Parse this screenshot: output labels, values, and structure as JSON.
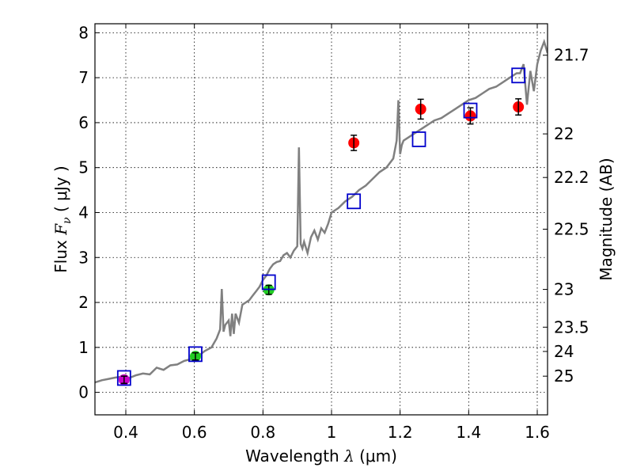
{
  "chart_data": {
    "type": "scatter",
    "xlabel_prefix": "Wavelength",
    "xlabel_symbol": "λ",
    "xlabel_unit": "(μm)",
    "ylabel_prefix": "Flux",
    "ylabel_symbol": "F",
    "ylabel_subscript": "ν",
    "ylabel_unit": "( μJy )",
    "y2label": "Magnitude (AB)",
    "xlim": [
      0.31,
      1.63
    ],
    "ylim": [
      -0.5,
      8.2
    ],
    "grid": true,
    "x_ticks": [
      {
        "value": 0.4,
        "label": "0.4"
      },
      {
        "value": 0.6,
        "label": "0.6"
      },
      {
        "value": 0.8,
        "label": "0.8"
      },
      {
        "value": 1.0,
        "label": "1"
      },
      {
        "value": 1.2,
        "label": "1.2"
      },
      {
        "value": 1.4,
        "label": "1.4"
      },
      {
        "value": 1.6,
        "label": "1.6"
      }
    ],
    "y_ticks": [
      {
        "value": 0,
        "label": "0"
      },
      {
        "value": 1,
        "label": "1"
      },
      {
        "value": 2,
        "label": "2"
      },
      {
        "value": 3,
        "label": "3"
      },
      {
        "value": 4,
        "label": "4"
      },
      {
        "value": 5,
        "label": "5"
      },
      {
        "value": 6,
        "label": "6"
      },
      {
        "value": 7,
        "label": "7"
      },
      {
        "value": 8,
        "label": "8"
      }
    ],
    "y2_ticks": [
      {
        "flux": 7.5,
        "label": "21.7"
      },
      {
        "flux": 5.75,
        "label": "22"
      },
      {
        "flux": 4.78,
        "label": "22.2"
      },
      {
        "flux": 3.63,
        "label": "22.5"
      },
      {
        "flux": 2.29,
        "label": "23"
      },
      {
        "flux": 1.45,
        "label": "23.5"
      },
      {
        "flux": 0.91,
        "label": "24"
      },
      {
        "flux": 0.36,
        "label": "25"
      }
    ],
    "model_spectrum": {
      "color": "#808080",
      "x": [
        0.31,
        0.33,
        0.35,
        0.37,
        0.39,
        0.41,
        0.43,
        0.45,
        0.47,
        0.49,
        0.51,
        0.53,
        0.55,
        0.57,
        0.59,
        0.61,
        0.63,
        0.65,
        0.665,
        0.675,
        0.68,
        0.685,
        0.69,
        0.7,
        0.705,
        0.71,
        0.715,
        0.72,
        0.73,
        0.74,
        0.75,
        0.76,
        0.77,
        0.78,
        0.79,
        0.8,
        0.81,
        0.82,
        0.83,
        0.84,
        0.85,
        0.86,
        0.87,
        0.88,
        0.89,
        0.9,
        0.905,
        0.91,
        0.915,
        0.92,
        0.93,
        0.94,
        0.95,
        0.96,
        0.97,
        0.98,
        0.99,
        1.0,
        1.02,
        1.04,
        1.06,
        1.08,
        1.1,
        1.12,
        1.14,
        1.16,
        1.18,
        1.19,
        1.195,
        1.2,
        1.205,
        1.21,
        1.22,
        1.24,
        1.26,
        1.28,
        1.3,
        1.32,
        1.34,
        1.36,
        1.38,
        1.4,
        1.42,
        1.44,
        1.46,
        1.48,
        1.5,
        1.52,
        1.54,
        1.55,
        1.56,
        1.57,
        1.58,
        1.59,
        1.6,
        1.61,
        1.62,
        1.63
      ],
      "y": [
        0.22,
        0.27,
        0.3,
        0.33,
        0.35,
        0.32,
        0.38,
        0.42,
        0.4,
        0.55,
        0.5,
        0.6,
        0.62,
        0.7,
        0.74,
        0.8,
        0.92,
        1.0,
        1.2,
        1.4,
        2.3,
        1.35,
        1.5,
        1.6,
        1.25,
        1.75,
        1.3,
        1.75,
        1.55,
        1.95,
        2.0,
        2.05,
        2.15,
        2.25,
        2.35,
        2.5,
        2.6,
        2.75,
        2.85,
        2.9,
        2.92,
        3.05,
        3.1,
        3.0,
        3.15,
        3.25,
        5.45,
        3.3,
        3.2,
        3.35,
        3.1,
        3.45,
        3.6,
        3.4,
        3.65,
        3.55,
        3.75,
        4.0,
        4.1,
        4.25,
        4.35,
        4.5,
        4.6,
        4.75,
        4.9,
        5.0,
        5.2,
        5.6,
        6.5,
        5.3,
        5.5,
        5.6,
        5.65,
        5.75,
        5.85,
        5.95,
        6.05,
        6.1,
        6.2,
        6.3,
        6.4,
        6.5,
        6.55,
        6.65,
        6.75,
        6.8,
        6.9,
        7.0,
        7.1,
        7.1,
        7.3,
        6.4,
        7.15,
        6.7,
        7.3,
        7.6,
        7.8,
        7.55
      ]
    },
    "series": [
      {
        "name": "observed-optical-u",
        "color": "#cc00cc",
        "points": [
          {
            "x": 0.395,
            "y": 0.28,
            "err": 0.08
          }
        ]
      },
      {
        "name": "observed-optical",
        "color": "#22cc22",
        "points": [
          {
            "x": 0.603,
            "y": 0.8,
            "err": 0.08
          },
          {
            "x": 0.817,
            "y": 2.28,
            "err": 0.1
          }
        ]
      },
      {
        "name": "observed-nir",
        "color": "#ff0000",
        "points": [
          {
            "x": 1.065,
            "y": 5.55,
            "err": 0.17
          },
          {
            "x": 1.26,
            "y": 6.3,
            "err": 0.22
          },
          {
            "x": 1.405,
            "y": 6.15,
            "err": 0.18
          },
          {
            "x": 1.545,
            "y": 6.35,
            "err": 0.18
          }
        ]
      },
      {
        "name": "model-synthetic",
        "color": "#0000cc",
        "marker": "open-square",
        "points": [
          {
            "x": 0.395,
            "y": 0.32
          },
          {
            "x": 0.603,
            "y": 0.85
          },
          {
            "x": 0.817,
            "y": 2.45
          },
          {
            "x": 1.065,
            "y": 4.25
          },
          {
            "x": 1.255,
            "y": 5.63
          },
          {
            "x": 1.405,
            "y": 6.27
          },
          {
            "x": 1.545,
            "y": 7.05
          }
        ]
      }
    ]
  }
}
